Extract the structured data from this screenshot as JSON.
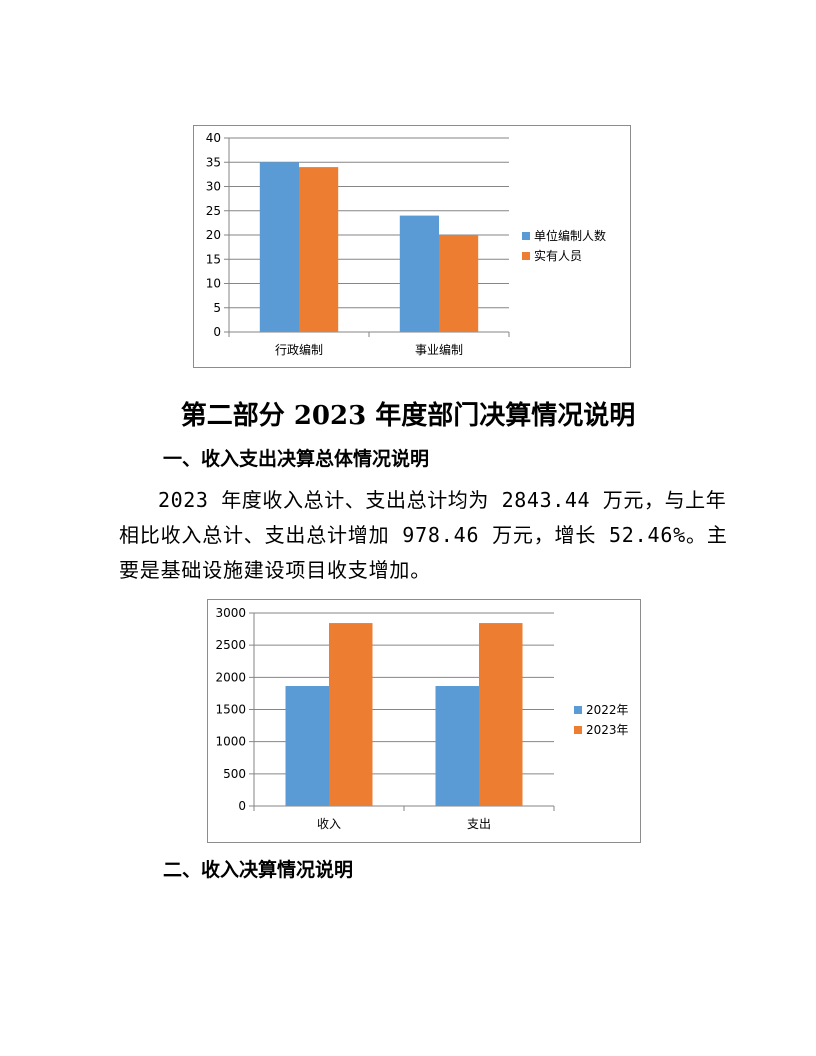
{
  "chart_data": [
    {
      "type": "bar",
      "categories": [
        "行政编制",
        "事业编制"
      ],
      "series": [
        {
          "name": "单位编制人数",
          "values": [
            35,
            24
          ],
          "color": "#5b9bd5"
        },
        {
          "name": "实有人员",
          "values": [
            34,
            20
          ],
          "color": "#ed7d31"
        }
      ],
      "ylim": [
        0,
        40
      ],
      "yticks": [
        0,
        5,
        10,
        15,
        20,
        25,
        30,
        35,
        40
      ],
      "grid": true,
      "legend": "right"
    },
    {
      "type": "bar",
      "categories": [
        "收入",
        "支出"
      ],
      "series": [
        {
          "name": "2022年",
          "values": [
            1864.98,
            1864.98
          ],
          "color": "#5b9bd5"
        },
        {
          "name": "2023年",
          "values": [
            2843.44,
            2843.44
          ],
          "color": "#ed7d31"
        }
      ],
      "ylim": [
        0,
        3000
      ],
      "yticks": [
        0,
        500,
        1000,
        1500,
        2000,
        2500,
        3000
      ],
      "grid": true,
      "legend": "right"
    }
  ],
  "document": {
    "heading": "第二部分  2023 年度部门决算情况说明",
    "section1_title": "一、收入支出决算总体情况说明",
    "paragraph_lines": [
      "2023 年度收入总计、支出总计均为 2843.44 万元，与上年",
      "相比收入总计、支出总计增加 978.46 万元，增长 52.46%。主",
      "要是基础设施建设项目收支增加。"
    ],
    "section2_title": "二、收入决算情况说明"
  }
}
